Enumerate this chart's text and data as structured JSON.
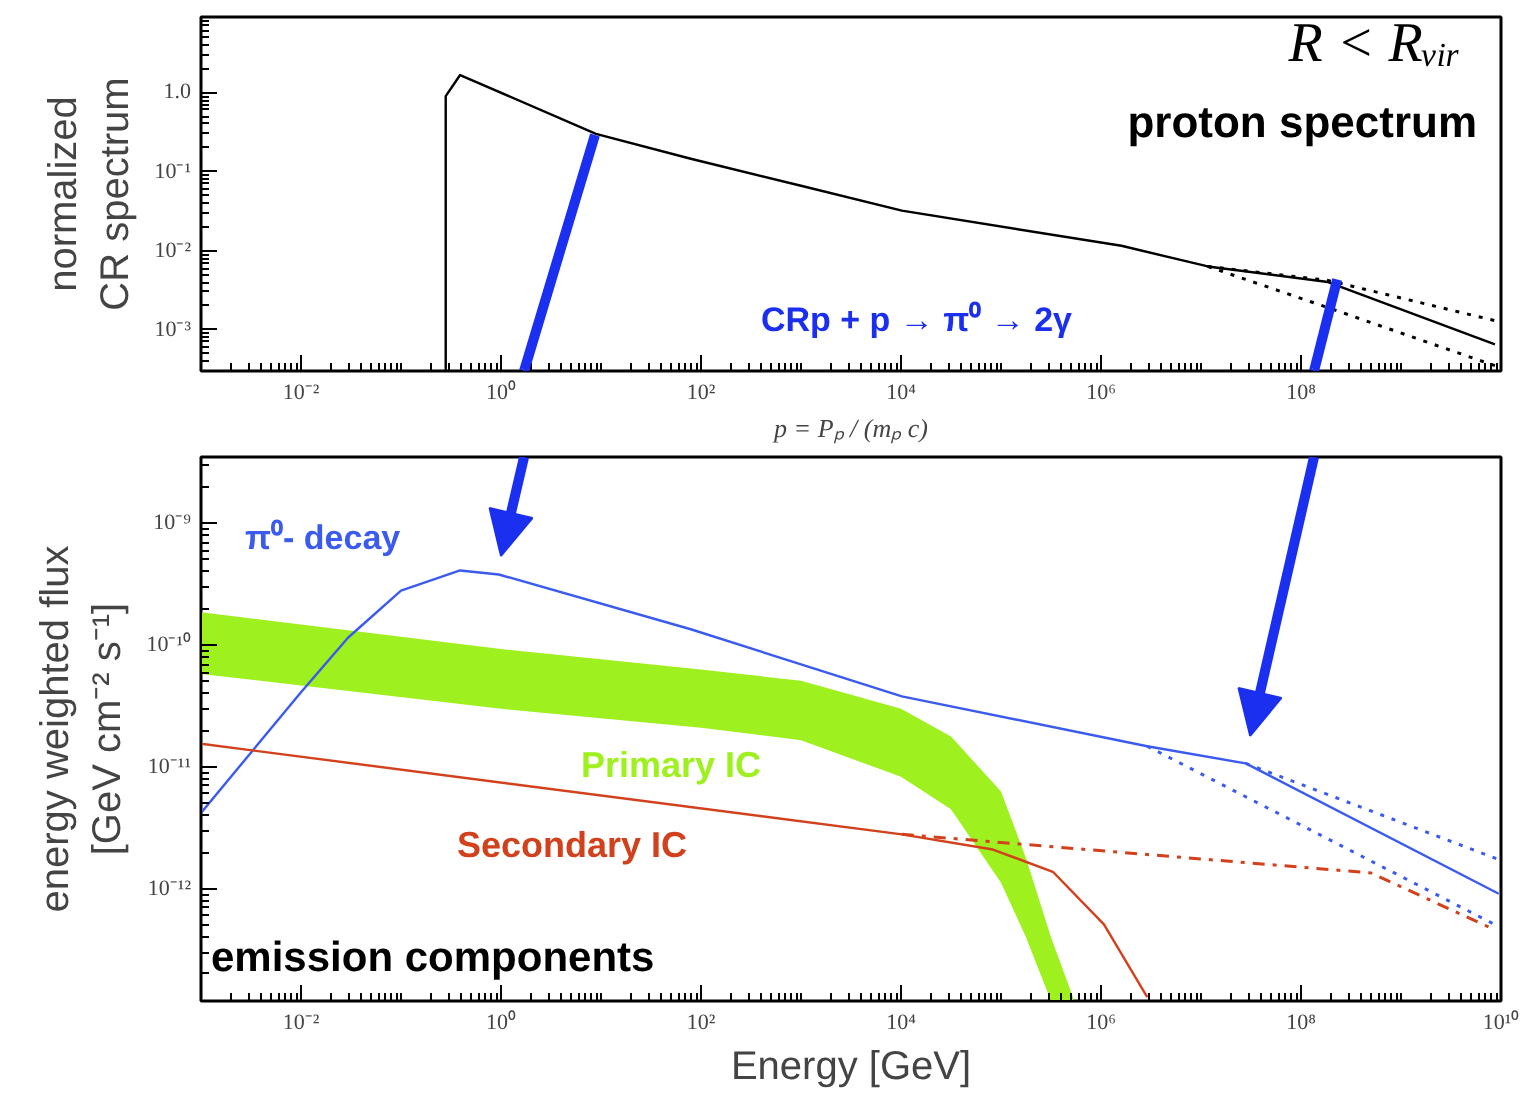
{
  "chart_data": [
    {
      "type": "line",
      "ylabel": "normalized\nCR spectrum",
      "xlabel": "p = Pₚ / (mₚ c)",
      "log": "xy",
      "grid": false,
      "marker": "none",
      "xlim": [
        0.001,
        10000000000.0
      ],
      "ylim": [
        0.0003,
        9
      ],
      "xticks": [
        {
          "value": 0.01,
          "label": "10⁻²"
        },
        {
          "value": 1,
          "label": "10⁰"
        },
        {
          "value": 100,
          "label": "10²"
        },
        {
          "value": 10000,
          "label": "10⁴"
        },
        {
          "value": 1000000,
          "label": "10⁶"
        },
        {
          "value": 100000000,
          "label": "10⁸"
        },
        {
          "value": 10000000000,
          "label": null
        }
      ],
      "yticks": [
        {
          "value": 0.001,
          "label": "10⁻³"
        },
        {
          "value": 0.01,
          "label": "10⁻²"
        },
        {
          "value": 0.1,
          "label": "10⁻¹"
        },
        {
          "value": 1,
          "label": "1.0"
        }
      ],
      "annotations": [
        "R < Rᵥᵢᵣ",
        "proton spectrum",
        "CRp + p → π⁰ → 2γ"
      ],
      "series": [
        {
          "color": "#000000",
          "line_style": "solid",
          "x": [
            0.28,
            0.28,
            0.39,
            8.9,
            79,
            1000,
            10200,
            1600000,
            11700000,
            186000000,
            8700000000
          ],
          "values": [
            0.0003,
            0.9,
            1.66,
            0.3,
            0.145,
            0.066,
            0.032,
            0.0115,
            0.0063,
            0.004,
            0.00065
          ]
        },
        {
          "color": "#000000",
          "line_style": "dotted",
          "x": [
            11700000,
            186000000,
            8700000000
          ],
          "values": [
            0.0063,
            0.0042,
            0.0013
          ]
        },
        {
          "color": "#000000",
          "line_style": "dotted",
          "x": [
            11700000,
            186000000,
            8700000000
          ],
          "values": [
            0.0063,
            0.0019,
            0.00035
          ]
        }
      ]
    },
    {
      "type": "line",
      "ylabel": "energy weighted flux\n[GeV cm⁻² s⁻¹]",
      "xlabel": "Energy [GeV]",
      "log": "xy",
      "grid": false,
      "marker": "none",
      "xlim": [
        0.001,
        10000000000.0
      ],
      "ylim": [
        1.2e-13,
        3.5e-09
      ],
      "xticks": [
        {
          "value": 0.01,
          "label": "10⁻²"
        },
        {
          "value": 1,
          "label": "10⁰"
        },
        {
          "value": 100,
          "label": "10²"
        },
        {
          "value": 10000,
          "label": "10⁴"
        },
        {
          "value": 1000000,
          "label": "10⁶"
        },
        {
          "value": 100000000,
          "label": "10⁸"
        },
        {
          "value": 10000000000,
          "label": "10¹⁰"
        }
      ],
      "yticks": [
        {
          "value": 1e-12,
          "label": "10⁻¹²"
        },
        {
          "value": 1e-11,
          "label": "10⁻¹¹"
        },
        {
          "value": 1e-10,
          "label": "10⁻¹⁰"
        },
        {
          "value": 1e-09,
          "label": "10⁻⁹"
        }
      ],
      "annotations": [
        "emission components"
      ],
      "series": [
        {
          "name": "π⁰- decay",
          "color": "#3b5bef",
          "line_style": "solid",
          "x": [
            0.001,
            0.01,
            0.0295,
            0.1,
            0.39,
            0.95,
            79,
            10200,
            2900000,
            28000000,
            9500000000
          ],
          "values": [
            4.2e-12,
            4.1e-11,
            1.15e-10,
            2.8e-10,
            4.1e-10,
            3.8e-10,
            1.35e-10,
            3.8e-11,
            1.48e-11,
            1.07e-11,
            9.1e-13
          ]
        },
        {
          "color": "#3b5bef",
          "line_style": "dotted",
          "x": [
            28000000,
            9500000000
          ],
          "values": [
            1.07e-11,
            1.74e-12
          ]
        },
        {
          "color": "#3b5bef",
          "line_style": "dotted",
          "x": [
            2900000,
            9500000000
          ],
          "values": [
            1.48e-11,
            4.9e-13
          ]
        },
        {
          "name": "Primary IC",
          "type": "area",
          "color": "#9ef01e",
          "x": [
            0.001,
            1,
            100,
            1000,
            10000,
            31600,
            100000,
            178000,
            316000,
            525000
          ],
          "values": [
            null,
            null,
            null,
            null,
            null,
            null,
            null,
            null,
            null,
            null
          ],
          "upper": [
            1.86e-10,
            9.3e-11,
            6.3e-11,
            5.1e-11,
            3e-11,
            1.78e-11,
            6.3e-12,
            1.78e-12,
            4e-13,
            1.29e-13
          ],
          "lower": [
            5.8e-11,
            3e-11,
            2.1e-11,
            1.66e-11,
            8.3e-12,
            4.5e-12,
            1.12e-12,
            4e-13,
            1.2e-13,
            1.2e-13
          ]
        },
        {
          "name": "Secondary IC",
          "color": "#d2401c",
          "line_style": "solid",
          "x": [
            0.001,
            10200,
            83000,
            330000,
            1070000,
            2900000
          ],
          "values": [
            1.55e-11,
            2.8e-12,
            2.1e-12,
            1.38e-12,
            5.1e-13,
            1.29e-13
          ]
        },
        {
          "color": "#d2401c",
          "line_style": "dashdot",
          "x": [
            10200,
            500000000,
            8700000000
          ],
          "values": [
            2.8e-12,
            1.35e-12,
            4.6e-13
          ]
        }
      ]
    }
  ]
}
